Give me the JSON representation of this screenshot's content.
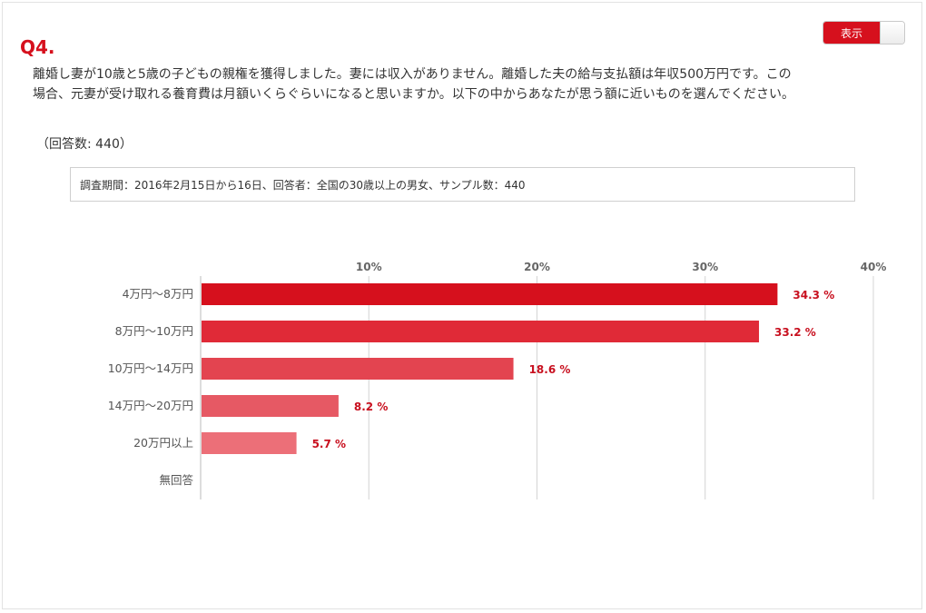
{
  "toggle": {
    "label": "表示"
  },
  "question": {
    "number": "Q4.",
    "text": "離婚し妻が10歳と5歳の子どもの親権を獲得しました。妻には収入がありません。離婚した夫の給与支払額は年収500万円です。この場合、元妻が受け取れる養育費は月額いくらぐらいになると思いますか。以下の中からあなたが思う額に近いものを選んでください。",
    "response_count": "（回答数: 440）"
  },
  "survey_info": "調査期間：2016年2月15日から16日、回答者：全国の30歳以上の男女、サンプル数：440",
  "colors": {
    "accent": "#d6101d",
    "value_label": "#c8101f",
    "bars": [
      "#d6101d",
      "#e02a37",
      "#e34450",
      "#e65964",
      "#ec6f78"
    ]
  },
  "chart_data": {
    "type": "bar",
    "orientation": "horizontal",
    "categories": [
      "4万円〜8万円",
      "8万円〜10万円",
      "10万円〜14万円",
      "14万円〜20万円",
      "20万円以上",
      "無回答"
    ],
    "values": [
      34.3,
      33.2,
      18.6,
      8.2,
      5.7,
      0
    ],
    "value_labels": [
      "34.3 %",
      "33.2 %",
      "18.6 %",
      "8.2 %",
      "5.7 %",
      ""
    ],
    "xlim": [
      0,
      40
    ],
    "ticks": [
      {
        "value": 10,
        "label": "10%"
      },
      {
        "value": 20,
        "label": "20%"
      },
      {
        "value": 30,
        "label": "30%"
      },
      {
        "value": 40,
        "label": "40%"
      }
    ],
    "grid": true,
    "axis_position": "top"
  }
}
